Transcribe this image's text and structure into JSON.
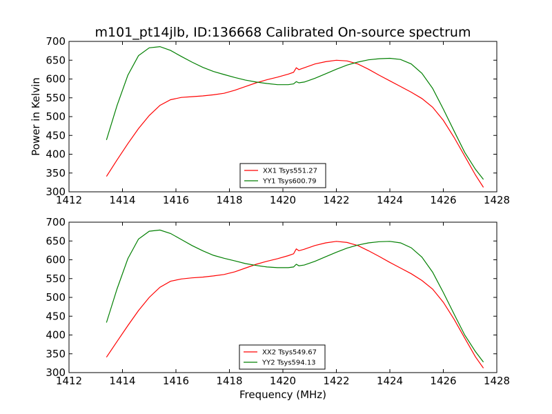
{
  "figure": {
    "title": "m101_pt14jlb, ID:136668 Calibrated On-source spectrum",
    "xlabel": "Frequency (MHz)"
  },
  "chart_data": [
    {
      "type": "line",
      "ylabel": "Power in Kelvin",
      "xlabel": "",
      "xlim": [
        1412,
        1428
      ],
      "ylim": [
        300,
        700
      ],
      "xticks": [
        1412,
        1414,
        1416,
        1418,
        1420,
        1422,
        1424,
        1426,
        1428
      ],
      "yticks": [
        300,
        350,
        400,
        450,
        500,
        550,
        600,
        650,
        700
      ],
      "legend": "bottom-center",
      "series": [
        {
          "name": "XX1 Tsys551.27",
          "color": "#ff0000",
          "x": [
            1413.4,
            1413.8,
            1414.2,
            1414.6,
            1415.0,
            1415.4,
            1415.8,
            1416.2,
            1416.6,
            1417.0,
            1417.4,
            1417.8,
            1418.2,
            1418.6,
            1419.0,
            1419.4,
            1419.8,
            1420.2,
            1420.4,
            1420.5,
            1420.6,
            1420.8,
            1421.2,
            1421.6,
            1422.0,
            1422.4,
            1422.8,
            1423.2,
            1423.6,
            1424.0,
            1424.4,
            1424.8,
            1425.2,
            1425.6,
            1426.0,
            1426.4,
            1426.8,
            1427.2,
            1427.5
          ],
          "y": [
            341,
            385,
            428,
            468,
            503,
            530,
            545,
            551,
            553,
            555,
            558,
            562,
            570,
            580,
            590,
            598,
            605,
            613,
            618,
            630,
            625,
            630,
            640,
            646,
            650,
            648,
            640,
            626,
            610,
            595,
            580,
            565,
            548,
            525,
            490,
            445,
            395,
            345,
            312
          ]
        },
        {
          "name": "YY1 Tsys600.79",
          "color": "#007f00",
          "x": [
            1413.4,
            1413.8,
            1414.2,
            1414.6,
            1415.0,
            1415.4,
            1415.8,
            1416.2,
            1416.6,
            1417.0,
            1417.4,
            1417.8,
            1418.2,
            1418.6,
            1419.0,
            1419.4,
            1419.8,
            1420.2,
            1420.4,
            1420.5,
            1420.6,
            1420.8,
            1421.2,
            1421.6,
            1422.0,
            1422.4,
            1422.8,
            1423.2,
            1423.6,
            1424.0,
            1424.4,
            1424.8,
            1425.2,
            1425.6,
            1426.0,
            1426.4,
            1426.8,
            1427.2,
            1427.5
          ],
          "y": [
            438,
            530,
            610,
            662,
            683,
            686,
            676,
            660,
            645,
            631,
            620,
            612,
            604,
            597,
            592,
            588,
            585,
            585,
            587,
            593,
            590,
            592,
            602,
            614,
            626,
            637,
            645,
            651,
            654,
            655,
            652,
            640,
            615,
            575,
            520,
            462,
            405,
            360,
            333
          ]
        }
      ]
    },
    {
      "type": "line",
      "ylabel": "",
      "xlabel": "Frequency (MHz)",
      "xlim": [
        1412,
        1428
      ],
      "ylim": [
        300,
        700
      ],
      "xticks": [
        1412,
        1414,
        1416,
        1418,
        1420,
        1422,
        1424,
        1426,
        1428
      ],
      "yticks": [
        300,
        350,
        400,
        450,
        500,
        550,
        600,
        650,
        700
      ],
      "legend": "bottom-center",
      "series": [
        {
          "name": "XX2 Tsys549.67",
          "color": "#ff0000",
          "x": [
            1413.4,
            1413.8,
            1414.2,
            1414.6,
            1415.0,
            1415.4,
            1415.8,
            1416.2,
            1416.6,
            1417.0,
            1417.4,
            1417.8,
            1418.2,
            1418.6,
            1419.0,
            1419.4,
            1419.8,
            1420.2,
            1420.4,
            1420.5,
            1420.6,
            1420.8,
            1421.2,
            1421.6,
            1422.0,
            1422.4,
            1422.8,
            1423.2,
            1423.6,
            1424.0,
            1424.4,
            1424.8,
            1425.2,
            1425.6,
            1426.0,
            1426.4,
            1426.8,
            1427.2,
            1427.5
          ],
          "y": [
            341,
            383,
            425,
            465,
            500,
            527,
            543,
            549,
            552,
            554,
            557,
            561,
            568,
            578,
            588,
            596,
            603,
            611,
            616,
            629,
            624,
            628,
            638,
            645,
            649,
            646,
            638,
            624,
            609,
            593,
            578,
            563,
            545,
            522,
            487,
            442,
            392,
            342,
            312
          ]
        },
        {
          "name": "YY2 Tsys594.13",
          "color": "#007f00",
          "x": [
            1413.4,
            1413.8,
            1414.2,
            1414.6,
            1415.0,
            1415.4,
            1415.8,
            1416.2,
            1416.6,
            1417.0,
            1417.4,
            1417.8,
            1418.2,
            1418.6,
            1419.0,
            1419.4,
            1419.8,
            1420.2,
            1420.4,
            1420.5,
            1420.6,
            1420.8,
            1421.2,
            1421.6,
            1422.0,
            1422.4,
            1422.8,
            1423.2,
            1423.6,
            1424.0,
            1424.4,
            1424.8,
            1425.2,
            1425.6,
            1426.0,
            1426.4,
            1426.8,
            1427.2,
            1427.5
          ],
          "y": [
            433,
            523,
            603,
            655,
            676,
            679,
            670,
            654,
            638,
            624,
            612,
            604,
            597,
            590,
            585,
            581,
            579,
            579,
            581,
            588,
            584,
            586,
            596,
            608,
            620,
            631,
            639,
            645,
            648,
            649,
            645,
            632,
            607,
            567,
            513,
            456,
            400,
            356,
            328
          ]
        }
      ]
    }
  ]
}
